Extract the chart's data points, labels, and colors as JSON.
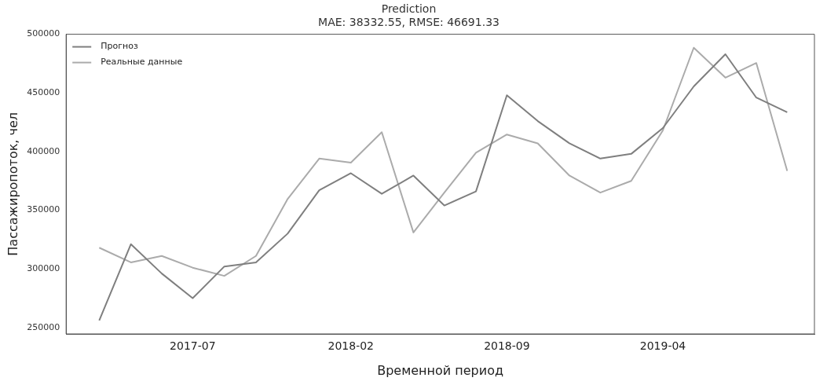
{
  "chart_data": {
    "type": "line",
    "title": "Prediction",
    "subtitle": "MAE: 38332.55, RMSE: 46691.33",
    "xlabel": "Временной период",
    "ylabel": "Пассажиропоток, чел",
    "x": [
      "2017-02-24",
      "2017-04-08",
      "2017-05-20",
      "2017-07-01",
      "2017-08-13",
      "2017-09-25",
      "2017-11-07",
      "2017-12-20",
      "2018-02-01",
      "2018-03-15",
      "2018-04-27",
      "2018-06-08",
      "2018-07-21",
      "2018-09-01",
      "2018-10-13",
      "2018-11-25",
      "2019-01-06",
      "2019-02-17",
      "2019-04-01",
      "2019-05-13",
      "2019-06-25",
      "2019-08-06",
      "2019-09-17"
    ],
    "series": [
      {
        "name": "Прогноз",
        "color": "#7f7f7f",
        "values": [
          256000,
          321000,
          296000,
          275000,
          302000,
          305500,
          330000,
          367000,
          381500,
          364000,
          379500,
          354000,
          366000,
          448000,
          426000,
          407000,
          394000,
          398000,
          420000,
          455500,
          483000,
          446000,
          433500
        ]
      },
      {
        "name": "Реальные данные",
        "color": "#ababab",
        "values": [
          318000,
          305500,
          311000,
          301000,
          294000,
          311000,
          359500,
          394000,
          390500,
          416500,
          331000,
          365000,
          399000,
          414500,
          407000,
          379500,
          365000,
          375000,
          418000,
          488500,
          463000,
          475500,
          383500
        ]
      }
    ],
    "xlim": [
      "2017-01-10",
      "2019-10-24"
    ],
    "xticks": [
      {
        "value": "2017-07-01",
        "label": "2017-07"
      },
      {
        "value": "2018-02-01",
        "label": "2018-02"
      },
      {
        "value": "2018-09-01",
        "label": "2018-09"
      },
      {
        "value": "2019-04-01",
        "label": "2019-04"
      }
    ],
    "ylim": [
      244500,
      500000
    ],
    "yticks": [
      250000,
      300000,
      350000,
      400000,
      450000,
      500000
    ],
    "grid": false,
    "legend": "top left",
    "marker": "none",
    "line_style": "solid"
  }
}
